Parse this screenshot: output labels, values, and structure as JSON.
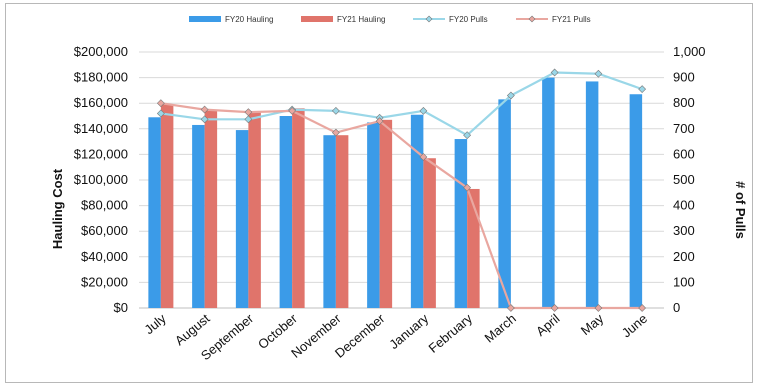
{
  "chart_data": {
    "type": "bar",
    "categories": [
      "July",
      "August",
      "September",
      "October",
      "November",
      "December",
      "January",
      "February",
      "March",
      "April",
      "May",
      "June"
    ],
    "series": [
      {
        "name": "FY20 Hauling",
        "kind": "bar",
        "axis": "left",
        "color": "#3b9be8",
        "values": [
          149000,
          143000,
          139000,
          150000,
          135000,
          145000,
          151000,
          132000,
          163000,
          180000,
          177000,
          167000
        ]
      },
      {
        "name": "FY21 Hauling",
        "kind": "bar",
        "axis": "left",
        "color": "#e0746b",
        "values": [
          159000,
          154000,
          153000,
          156000,
          135000,
          147000,
          117000,
          93000,
          null,
          null,
          null,
          null
        ]
      },
      {
        "name": "FY20 Pulls",
        "kind": "line",
        "axis": "right",
        "color": "#9ad7e8",
        "values": [
          760,
          737,
          737,
          775,
          770,
          743,
          770,
          675,
          830,
          920,
          915,
          855
        ]
      },
      {
        "name": "FY21 Pulls",
        "kind": "line",
        "axis": "right",
        "color": "#e9a7a0",
        "values": [
          800,
          775,
          765,
          770,
          685,
          730,
          590,
          470,
          0,
          0,
          0,
          0
        ]
      }
    ],
    "ylabel": "Hauling Cost",
    "y2label": "# of Pulls",
    "ylim": [
      0,
      200000
    ],
    "y2lim": [
      0,
      1000
    ],
    "yticks": [
      "$0",
      "$20,000",
      "$40,000",
      "$60,000",
      "$80,000",
      "$100,000",
      "$120,000",
      "$140,000",
      "$160,000",
      "$180,000",
      "$200,000"
    ],
    "y2ticks": [
      "0",
      "100",
      "200",
      "300",
      "400",
      "500",
      "600",
      "700",
      "800",
      "900",
      "1,000"
    ],
    "grid": true,
    "legend": "top-center"
  }
}
